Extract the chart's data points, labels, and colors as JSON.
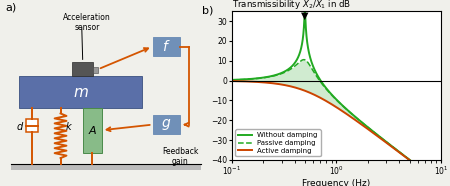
{
  "background_color": "#f0f0eb",
  "orange": "#d45500",
  "blue_mass": "#5a6fa8",
  "blue_box": "#7090b8",
  "dark_gray": "#555555",
  "green_act": "#88bb88",
  "green_fill": "#c8e8c8",
  "green_line": "#22aa22",
  "red_line": "#cc4400",
  "resonance_freq": 0.5,
  "zeta_nodamp": 0.008,
  "zeta_passive": 0.15,
  "zeta_active": 0.9,
  "ylim": [
    -40,
    35
  ],
  "yticks": [
    30,
    20,
    10,
    0,
    -10,
    -20,
    -30,
    -40
  ],
  "xlabel": "Frequency (Hz)",
  "title": "Transmissibility $X_2/X_1$ in dB",
  "legend_labels": [
    "Without damping",
    "Passive damping",
    "Active damping"
  ]
}
